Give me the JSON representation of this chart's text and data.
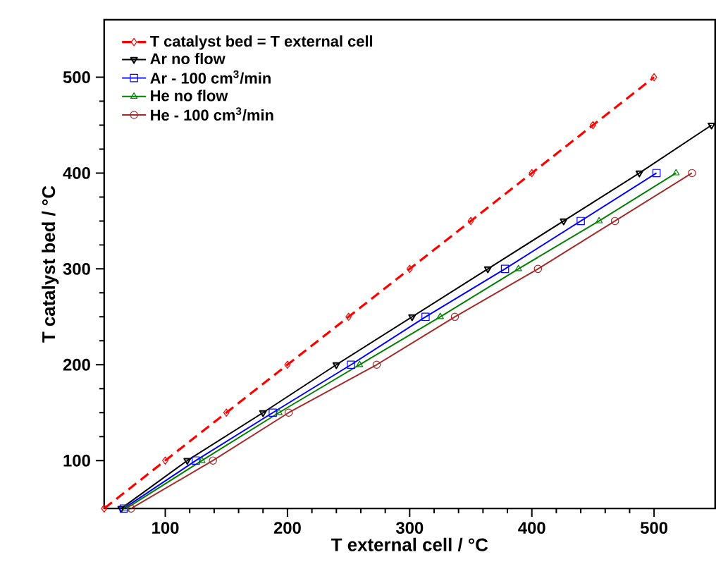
{
  "chart_data": {
    "type": "line",
    "xlabel": "T external cell / °C",
    "ylabel": "T catalyst bed / °C",
    "xlim": [
      50,
      550
    ],
    "ylim": [
      50,
      560
    ],
    "xticks": [
      100,
      200,
      300,
      400,
      500
    ],
    "yticks": [
      100,
      200,
      300,
      400,
      500
    ],
    "legend": "top left",
    "grid": false,
    "series": [
      {
        "name": "T catalyst bed = T external cell",
        "color": "#ff0000",
        "marker": "diamond",
        "line_style": "dashed",
        "x": [
          50,
          100,
          150,
          200,
          250,
          300,
          350,
          400,
          450,
          500
        ],
        "values": [
          50,
          100,
          150,
          200,
          250,
          300,
          350,
          400,
          450,
          500
        ]
      },
      {
        "name": "Ar no flow",
        "color": "#000000",
        "marker": "triangle_down",
        "line_style": "solid",
        "x": [
          64,
          118,
          180,
          240,
          302,
          364,
          426,
          488,
          547
        ],
        "values": [
          50,
          100,
          150,
          200,
          250,
          300,
          350,
          400,
          450
        ]
      },
      {
        "name": "Ar - 100 cm$^{3}$/min",
        "color": "#0000ff",
        "marker": "square",
        "line_style": "solid",
        "x": [
          66,
          125,
          188,
          252,
          313,
          378,
          440,
          502
        ],
        "values": [
          50,
          100,
          150,
          200,
          250,
          300,
          350,
          400
        ]
      },
      {
        "name": "He no flow",
        "color": "#008000",
        "marker": "triangle",
        "line_style": "solid",
        "x": [
          68,
          130,
          193,
          259,
          325,
          389,
          455,
          518
        ],
        "values": [
          50,
          100,
          150,
          200,
          250,
          300,
          350,
          400
        ]
      },
      {
        "name": "He - 100 cm$^{3}$/min",
        "color": "#a52a2a",
        "marker": "circle",
        "line_style": "solid",
        "x": [
          72,
          139,
          201,
          273,
          337,
          405,
          468,
          531
        ],
        "values": [
          50,
          100,
          150,
          200,
          250,
          300,
          350,
          400
        ]
      }
    ]
  }
}
